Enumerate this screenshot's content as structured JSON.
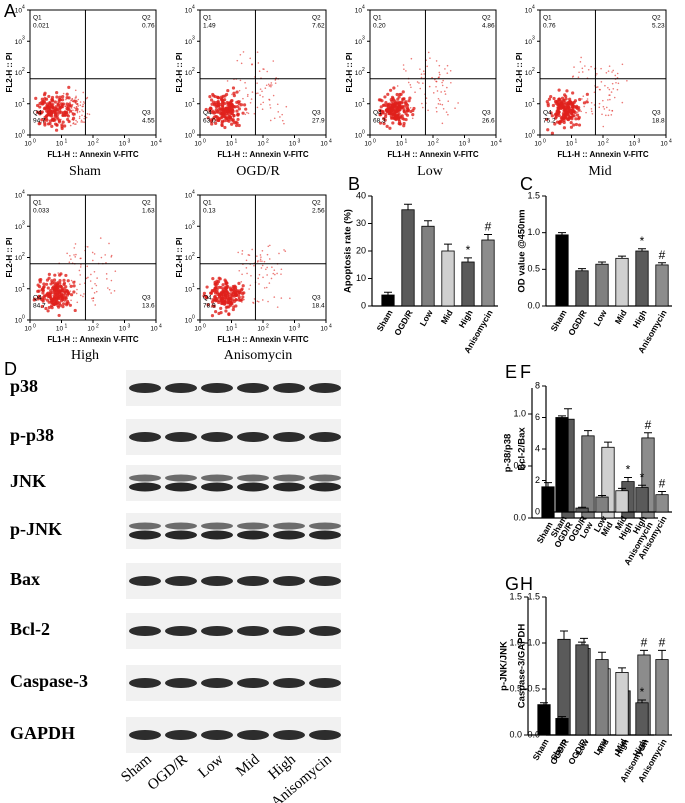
{
  "flow": {
    "letter": "A",
    "xlabel": "FL1-H :: Annexin V-FITC",
    "ylabel": "FL2-H :: PI",
    "tick_base": "10",
    "tick_exponents": [
      "0",
      "1",
      "2",
      "3",
      "4"
    ],
    "quadrant_names": [
      "Q1",
      "Q2",
      "Q3",
      "Q4"
    ],
    "panels": [
      {
        "name": "Sham",
        "quadrants": [
          "0.021",
          "0.76",
          "4.55",
          "94.7"
        ]
      },
      {
        "name": "OGD/R",
        "quadrants": [
          "1.49",
          "7.62",
          "27.9",
          "63.0"
        ]
      },
      {
        "name": "Low",
        "quadrants": [
          "0.20",
          "4.86",
          "26.6",
          "68.3"
        ]
      },
      {
        "name": "Mid",
        "quadrants": [
          "0.76",
          "5.23",
          "18.8",
          "75.2"
        ]
      },
      {
        "name": "High",
        "quadrants": [
          "0.033",
          "1.63",
          "13.6",
          "84.7"
        ]
      },
      {
        "name": "Anisomycin",
        "quadrants": [
          "0.13",
          "2.56",
          "18.4",
          "78.9"
        ]
      }
    ]
  },
  "western_blot": {
    "letter": "D",
    "proteins": [
      "p38",
      "p-p38",
      "JNK",
      "p-JNK",
      "Bax",
      "Bcl-2",
      "Caspase-3",
      "GAPDH"
    ],
    "lanes": [
      "Sham",
      "OGD/R",
      "Low",
      "Mid",
      "High",
      "Anisomycin"
    ]
  },
  "chart_data": [
    {
      "type": "bar",
      "letter": "B",
      "ylabel": "Apoptosis rate (%)",
      "categories": [
        "Sham",
        "OGD/R",
        "Low",
        "Mid",
        "High",
        "Anisomycin"
      ],
      "values": [
        4,
        35,
        29,
        20,
        16,
        24
      ],
      "errors": [
        1,
        2,
        2,
        2.5,
        1.5,
        2
      ],
      "colors": [
        "#000000",
        "#5a5a5a",
        "#808080",
        "#d0d0d0",
        "#5a5a5a",
        "#8c8c8c"
      ],
      "annotations": [
        null,
        null,
        null,
        null,
        "*",
        "#"
      ],
      "ylim": [
        0,
        40
      ],
      "yticks": [
        0,
        10,
        20,
        30,
        40
      ]
    },
    {
      "type": "bar",
      "letter": "C",
      "ylabel": "OD value @450nm",
      "categories": [
        "Sham",
        "OGD/R",
        "Low",
        "Mid",
        "High",
        "Anisomycin"
      ],
      "values": [
        0.97,
        0.48,
        0.57,
        0.65,
        0.75,
        0.56
      ],
      "errors": [
        0.03,
        0.03,
        0.03,
        0.03,
        0.03,
        0.03
      ],
      "colors": [
        "#000000",
        "#5a5a5a",
        "#808080",
        "#d0d0d0",
        "#5a5a5a",
        "#8c8c8c"
      ],
      "annotations": [
        null,
        null,
        null,
        null,
        "*",
        "#"
      ],
      "ylim": [
        0,
        1.5
      ],
      "yticks": [
        {
          "value": 0,
          "label": "0.0"
        },
        {
          "value": 0.5,
          "label": "0.5"
        },
        {
          "value": 1,
          "label": "1.0"
        },
        {
          "value": 1.5,
          "label": "1.5"
        }
      ]
    },
    {
      "type": "bar",
      "letter": "E",
      "ylabel": "p-38/p38",
      "categories": [
        "Sham",
        "OGD/R",
        "Low",
        "Mid",
        "High",
        "Anisomycin"
      ],
      "values": [
        0.3,
        0.95,
        0.79,
        0.68,
        0.35,
        0.77
      ],
      "errors": [
        0.04,
        0.1,
        0.05,
        0.05,
        0.04,
        0.05
      ],
      "colors": [
        "#000000",
        "#5a5a5a",
        "#808080",
        "#d0d0d0",
        "#5a5a5a",
        "#8c8c8c"
      ],
      "annotations": [
        null,
        null,
        null,
        null,
        "*",
        "#"
      ],
      "ylim": [
        0,
        1.25
      ],
      "yticks": [
        {
          "value": 0,
          "label": "0.0"
        },
        {
          "value": 0.5,
          "label": "0.5"
        },
        {
          "value": 1,
          "label": "1.0"
        }
      ]
    },
    {
      "type": "bar",
      "letter": "F",
      "ylabel": "Bcl-2/Bax",
      "categories": [
        "Sham",
        "OGD/R",
        "Low",
        "Mid",
        "High",
        "Anisomycin"
      ],
      "values": [
        6.0,
        0.25,
        0.95,
        1.35,
        1.55,
        1.1
      ],
      "errors": [
        0.1,
        0.05,
        0.1,
        0.15,
        0.15,
        0.2
      ],
      "colors": [
        "#000000",
        "#5a5a5a",
        "#808080",
        "#d0d0d0",
        "#5a5a5a",
        "#8c8c8c"
      ],
      "annotations": [
        null,
        null,
        null,
        null,
        "*",
        "#"
      ],
      "ylim": [
        0,
        8
      ],
      "yticks": [
        0,
        2,
        4,
        6,
        8
      ]
    },
    {
      "type": "bar",
      "letter": "G",
      "ylabel": "p-JNK/JNK",
      "categories": [
        "Sham",
        "OGD/R",
        "Low",
        "Mid",
        "High",
        "Anisomycin"
      ],
      "values": [
        0.33,
        1.04,
        0.94,
        0.72,
        0.48,
        0.87
      ],
      "errors": [
        0.02,
        0.09,
        0.11,
        0.04,
        0.05,
        0.05
      ],
      "colors": [
        "#000000",
        "#5a5a5a",
        "#808080",
        "#d0d0d0",
        "#5a5a5a",
        "#8c8c8c"
      ],
      "annotations": [
        null,
        null,
        null,
        null,
        "*",
        "#"
      ],
      "ylim": [
        0,
        1.5
      ],
      "yticks": [
        {
          "value": 0,
          "label": "0.0"
        },
        {
          "value": 0.5,
          "label": "0.5"
        },
        {
          "value": 1,
          "label": "1.0"
        },
        {
          "value": 1.5,
          "label": "1.5"
        }
      ]
    },
    {
      "type": "bar",
      "letter": "H",
      "ylabel": "Caspase-3/GAPDH",
      "categories": [
        "Sham",
        "OGD/R",
        "Low",
        "Mid",
        "High",
        "Anisomycin"
      ],
      "values": [
        0.18,
        0.98,
        0.82,
        0.68,
        0.35,
        0.82
      ],
      "errors": [
        0.02,
        0.03,
        0.08,
        0.05,
        0.03,
        0.1
      ],
      "colors": [
        "#000000",
        "#5a5a5a",
        "#808080",
        "#d0d0d0",
        "#5a5a5a",
        "#8c8c8c"
      ],
      "annotations": [
        null,
        null,
        null,
        null,
        "*",
        "#"
      ],
      "ylim": [
        0,
        1.5
      ],
      "yticks": [
        {
          "value": 0,
          "label": "0.0"
        },
        {
          "value": 0.5,
          "label": "0.5"
        },
        {
          "value": 1,
          "label": "1.0"
        },
        {
          "value": 1.5,
          "label": "1.5"
        }
      ]
    }
  ]
}
